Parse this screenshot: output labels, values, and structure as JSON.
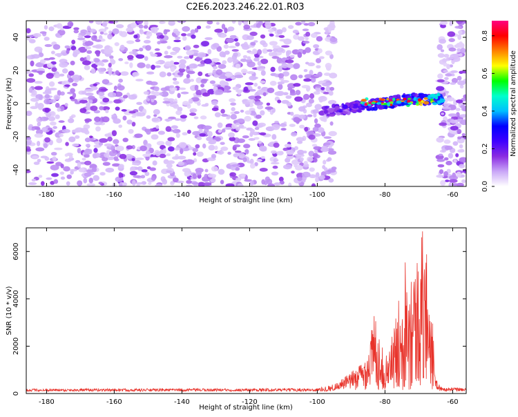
{
  "title": "C2E6.2023.246.22.01.R03",
  "chart_data": [
    {
      "type": "heatmap",
      "xlabel": "Height of straight line (km)",
      "ylabel": "Frequency (Hz)",
      "xlim": [
        -186,
        -56
      ],
      "ylim": [
        -50,
        50
      ],
      "x_ticks": [
        "-180",
        "-160",
        "-140",
        "-120",
        "-100",
        "-80",
        "-60"
      ],
      "y_ticks": [
        "-40",
        "-20",
        "0",
        "20",
        "40"
      ],
      "colorbar": {
        "label": "Normalized spectral amplitude",
        "range": [
          0.0,
          0.88
        ],
        "ticks": [
          "0.0",
          "0.2",
          "0.4",
          "0.6",
          "0.8"
        ],
        "colors": [
          "#ffffff",
          "#c9a6f7",
          "#8a2be2",
          "#3f00ff",
          "#0000ff",
          "#00bfff",
          "#00ffcc",
          "#00ff00",
          "#ffff00",
          "#ff8000",
          "#ff0000",
          "#ff0080"
        ]
      },
      "features": {
        "noise_range_km": [
          -186,
          -95
        ],
        "gap_range_km": [
          -95,
          -64
        ],
        "noise_after_gap_km": [
          -64,
          -56
        ],
        "echo_range_km": [
          -98,
          -63
        ],
        "echo_freq_start_hz": -5,
        "echo_freq_end_hz": 3,
        "echo_peak_amplitude": 0.85
      }
    },
    {
      "type": "line",
      "xlabel": "Height of straight line (km)",
      "ylabel": "SNR (10 * v/v)",
      "xlim": [
        -186,
        -56
      ],
      "ylim": [
        0,
        7000
      ],
      "x_ticks": [
        "-180",
        "-160",
        "-140",
        "-120",
        "-100",
        "-80",
        "-60"
      ],
      "y_ticks": [
        "0",
        "2000",
        "4000",
        "6000"
      ],
      "color": "#e8322a",
      "baseline_snr": 150,
      "envelope": [
        {
          "x": -186,
          "y": 200
        },
        {
          "x": -100,
          "y": 220
        },
        {
          "x": -95,
          "y": 400
        },
        {
          "x": -90,
          "y": 900
        },
        {
          "x": -86,
          "y": 1500
        },
        {
          "x": -83,
          "y": 3500
        },
        {
          "x": -80,
          "y": 1400
        },
        {
          "x": -77,
          "y": 3000
        },
        {
          "x": -74,
          "y": 6000
        },
        {
          "x": -71,
          "y": 5500
        },
        {
          "x": -69,
          "y": 7000
        },
        {
          "x": -67,
          "y": 5800
        },
        {
          "x": -65,
          "y": 600
        },
        {
          "x": -63,
          "y": 250
        },
        {
          "x": -56,
          "y": 250
        }
      ]
    }
  ]
}
